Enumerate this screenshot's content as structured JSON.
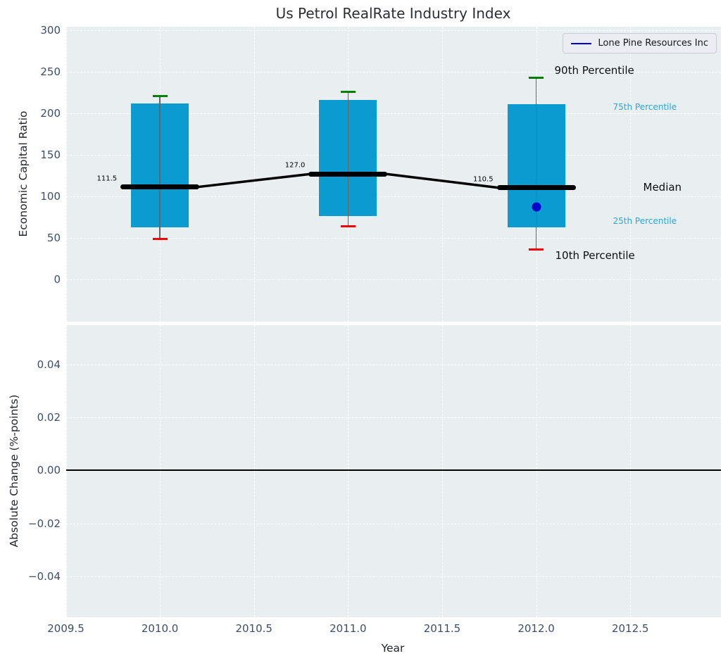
{
  "figure": {
    "title": "Us Petrol RealRate Industry Index",
    "background": "#ffffff",
    "plot_background": "#e9eef0"
  },
  "legend": {
    "label": "Lone Pine Resources Inc",
    "line_color": "#0000cd",
    "position": "upper right"
  },
  "chart_data": [
    {
      "type": "boxplot",
      "title": "Us Petrol RealRate Industry Index",
      "xlabel": "Year",
      "ylabel": "Economic Capital Ratio",
      "categories": [
        2010,
        2011,
        2012
      ],
      "series": [
        {
          "name": "10th Percentile",
          "key": "p10",
          "values": [
            49,
            64,
            36
          ]
        },
        {
          "name": "25th Percentile",
          "key": "p25",
          "values": [
            63,
            76,
            63
          ]
        },
        {
          "name": "Median",
          "key": "median",
          "values": [
            111.5,
            127.0,
            110.5
          ]
        },
        {
          "name": "75th Percentile",
          "key": "p75",
          "values": [
            212,
            216,
            211
          ]
        },
        {
          "name": "90th Percentile",
          "key": "p90",
          "values": [
            221,
            226,
            243
          ]
        }
      ],
      "median_labels": [
        "111.5",
        "127.0",
        "110.5"
      ],
      "company_point": {
        "name": "Lone Pine Resources Inc",
        "x": 2012,
        "y": 87,
        "color": "#0000cd"
      },
      "annotations": [
        {
          "text": "90th Percentile",
          "style": "dark"
        },
        {
          "text": "75th Percentile",
          "style": "accent"
        },
        {
          "text": "Median",
          "style": "dark"
        },
        {
          "text": "25th Percentile",
          "style": "accent"
        },
        {
          "text": "10th Percentile",
          "style": "dark"
        }
      ],
      "colors": {
        "box": "#0a9bd1",
        "median": "#000000",
        "p90_cap": "#008000",
        "p10_cap": "#f40000",
        "whisker": "#666666",
        "accent_text": "#29a7dc"
      },
      "xlim": [
        2009.5,
        2012.98
      ],
      "ylim": [
        -50.7,
        304.3
      ],
      "grid": true,
      "legend_position": "upper right",
      "yticks": [
        {
          "v": 300,
          "label": "300"
        },
        {
          "v": 250,
          "label": "250"
        },
        {
          "v": 200,
          "label": "200"
        },
        {
          "v": 150,
          "label": "150"
        },
        {
          "v": 100,
          "label": "100"
        },
        {
          "v": 50,
          "label": "50"
        },
        {
          "v": 0,
          "label": "0"
        }
      ],
      "xticks": [
        {
          "v": 2009.5,
          "label": "2009.5"
        },
        {
          "v": 2010.0,
          "label": "2010.0"
        },
        {
          "v": 2010.5,
          "label": "2010.5"
        },
        {
          "v": 2011.0,
          "label": "2011.0"
        },
        {
          "v": 2011.5,
          "label": "2011.5"
        },
        {
          "v": 2012.0,
          "label": "2012.0"
        },
        {
          "v": 2012.5,
          "label": "2012.5"
        }
      ]
    },
    {
      "type": "line",
      "xlabel": "Year",
      "ylabel": "Absolute Change (%-points)",
      "x": [],
      "series": [],
      "zero_line": true,
      "grid": true,
      "ylim": [
        -0.0554,
        0.0549
      ],
      "yticks": [
        {
          "v": 0.04,
          "label": "0.04"
        },
        {
          "v": 0.02,
          "label": "0.02"
        },
        {
          "v": 0,
          "label": "0.00"
        },
        {
          "v": -0.02,
          "label": "−0.02"
        },
        {
          "v": -0.04,
          "label": "−0.04"
        }
      ]
    }
  ]
}
